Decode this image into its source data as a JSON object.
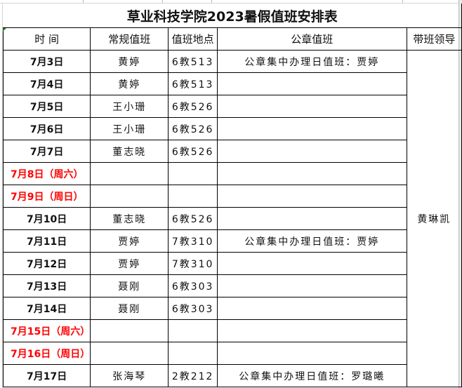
{
  "title": "草业科技学院2023暑假值班安排表",
  "headers": [
    "时 间",
    "常规值班",
    "值班地点",
    "公章值班",
    "带班领导"
  ],
  "leader": "黄琳凯",
  "rows": [
    {
      "date": "7月3日",
      "duty": "黄婷",
      "place": "6教513",
      "seal": "公章集中办理日值班：贾婷",
      "weekend": false
    },
    {
      "date": "7月4日",
      "duty": "黄婷",
      "place": "6教513",
      "seal": "",
      "weekend": false
    },
    {
      "date": "7月5日",
      "duty": "王小珊",
      "place": "6教526",
      "seal": "",
      "weekend": false
    },
    {
      "date": "7月6日",
      "duty": "王小珊",
      "place": "6教526",
      "seal": "",
      "weekend": false
    },
    {
      "date": "7月7日",
      "duty": "董志晓",
      "place": "6教526",
      "seal": "",
      "weekend": false
    },
    {
      "date": "7月8日（周六）",
      "duty": "",
      "place": "",
      "seal": "",
      "weekend": true
    },
    {
      "date": "7月9日（周日）",
      "duty": "",
      "place": "",
      "seal": "",
      "weekend": true
    },
    {
      "date": "7月10日",
      "duty": "董志晓",
      "place": "6教526",
      "seal": "",
      "weekend": false
    },
    {
      "date": "7月11日",
      "duty": "贾婷",
      "place": "7教310",
      "seal": "公章集中办理日值班：贾婷",
      "weekend": false
    },
    {
      "date": "7月12日",
      "duty": "贾婷",
      "place": "7教310",
      "seal": "",
      "weekend": false
    },
    {
      "date": "7月13日",
      "duty": "聂刚",
      "place": "6教303",
      "seal": "",
      "weekend": false
    },
    {
      "date": "7月14日",
      "duty": "聂刚",
      "place": "6教303",
      "seal": "",
      "weekend": false
    },
    {
      "date": "7月15日（周六）",
      "duty": "",
      "place": "",
      "seal": "",
      "weekend": true
    },
    {
      "date": "7月16日（周日）",
      "duty": "",
      "place": "",
      "seal": "",
      "weekend": true
    },
    {
      "date": "7月17日",
      "duty": "张海琴",
      "place": "2教212",
      "seal": "公章集中办理日值班：罗璐曦",
      "weekend": false
    }
  ],
  "colors": {
    "weekend_text": "#ff0000",
    "border": "#000000"
  }
}
